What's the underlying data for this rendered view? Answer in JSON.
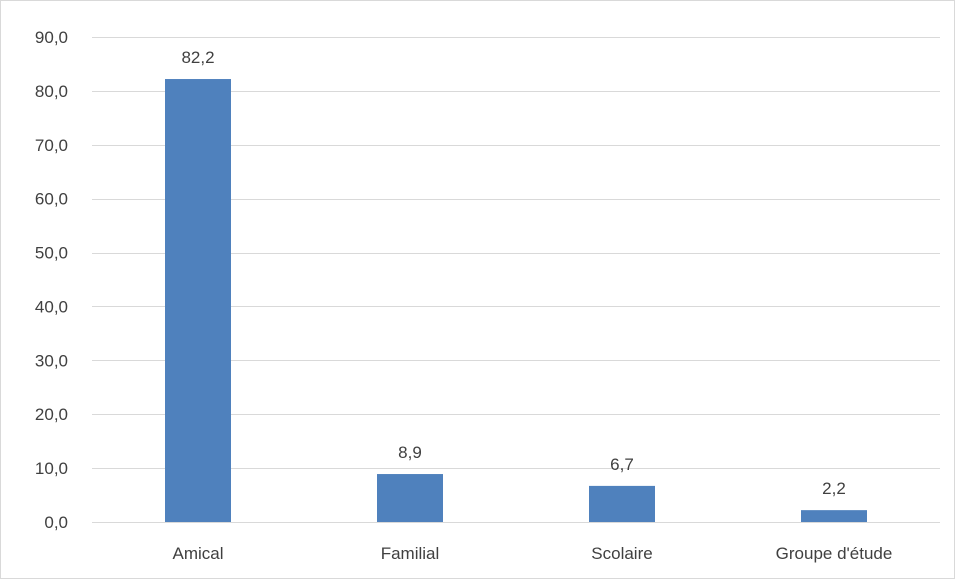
{
  "chart_data": {
    "type": "bar",
    "categories": [
      "Amical",
      "Familial",
      "Scolaire",
      "Groupe d'étude"
    ],
    "values": [
      82.2,
      8.9,
      6.7,
      2.2
    ],
    "value_labels": [
      "82,2",
      "8,9",
      "6,7",
      "2,2"
    ],
    "ylim": [
      0,
      90
    ],
    "y_ticks": [
      0,
      10,
      20,
      30,
      40,
      50,
      60,
      70,
      80,
      90
    ],
    "y_tick_labels": [
      "0,0",
      "10,0",
      "20,0",
      "30,0",
      "40,0",
      "50,0",
      "60,0",
      "70,0",
      "80,0",
      "90,0"
    ],
    "grid": true,
    "legend": "none",
    "colors": {
      "bar": "#4f81bd",
      "grid": "#d9d9d9",
      "axis": "#d9d9d9",
      "text": "#404040"
    }
  }
}
